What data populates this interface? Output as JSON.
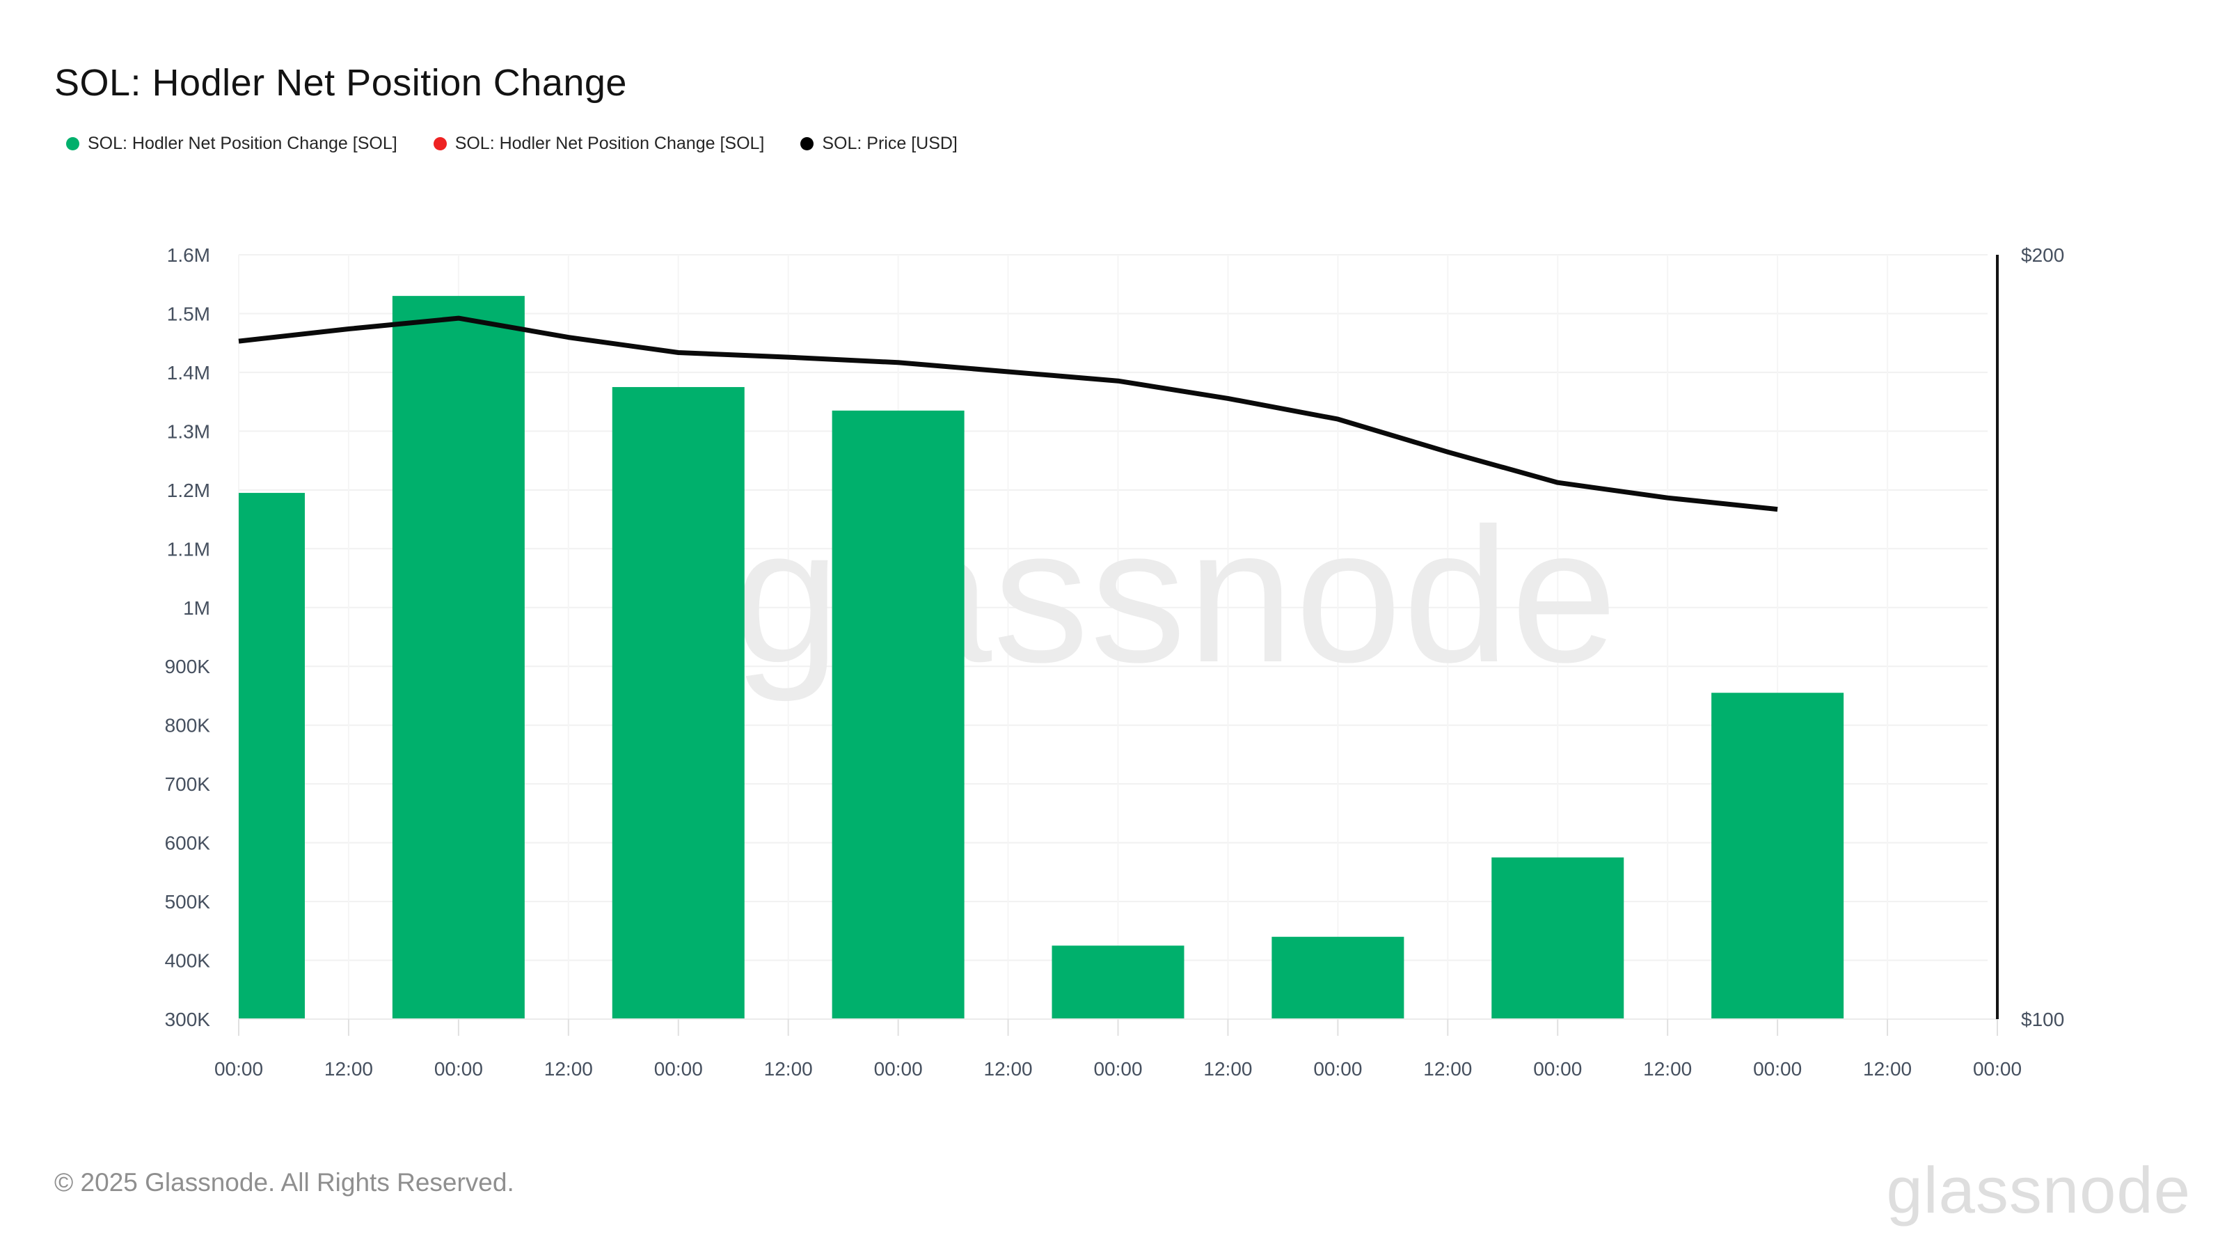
{
  "title": "SOL: Hodler Net Position Change",
  "legend": {
    "items": [
      {
        "label": "SOL: Hodler Net Position Change [SOL]",
        "color": "#00b06c"
      },
      {
        "label": "SOL: Hodler Net Position Change [SOL]",
        "color": "#ee2222"
      },
      {
        "label": "SOL: Price [USD]",
        "color": "#000000"
      }
    ]
  },
  "watermark": {
    "text": "glassnode"
  },
  "footer": {
    "copyright": "© 2025 Glassnode. All Rights Reserved.",
    "brand": "glassnode"
  },
  "chart_data": {
    "type": "bar+line",
    "title": "SOL: Hodler Net Position Change",
    "x_tick_labels": [
      "00:00",
      "12:00",
      "00:00",
      "12:00",
      "00:00",
      "12:00",
      "00:00",
      "12:00",
      "00:00",
      "12:00",
      "00:00",
      "12:00",
      "00:00",
      "12:00",
      "00:00",
      "12:00",
      "00:00"
    ],
    "series": [
      {
        "name": "SOL: Hodler Net Position Change [SOL]",
        "type": "bar",
        "axis": "left",
        "color": "#00b06c",
        "tick_indices": [
          0,
          2,
          4,
          6,
          8,
          10,
          12,
          14
        ],
        "values": [
          1195000,
          1530000,
          1375000,
          1335000,
          425000,
          440000,
          575000,
          855000
        ]
      },
      {
        "name": "SOL: Price [USD]",
        "type": "line",
        "axis": "right",
        "color": "#0a0a0a",
        "tick_indices": [
          0,
          1,
          2,
          3,
          4,
          5,
          6,
          7,
          8,
          9,
          10,
          11,
          12,
          13,
          14
        ],
        "values": [
          188.7,
          190.3,
          191.7,
          189.2,
          187.2,
          186.6,
          185.9,
          184.7,
          183.5,
          181.2,
          178.5,
          174.2,
          170.2,
          168.2,
          166.7
        ]
      }
    ],
    "y_left": {
      "min": 300000,
      "max": 1600000,
      "tick_step": 100000,
      "tick_labels": [
        "300K",
        "400K",
        "500K",
        "600K",
        "700K",
        "800K",
        "900K",
        "1M",
        "1.1M",
        "1.2M",
        "1.3M",
        "1.4M",
        "1.5M",
        "1.6M"
      ]
    },
    "y_right": {
      "min": 100,
      "max": 200,
      "tick_labels": [
        "$100",
        "$200"
      ]
    },
    "grid": true,
    "legend_position": "top-left"
  }
}
